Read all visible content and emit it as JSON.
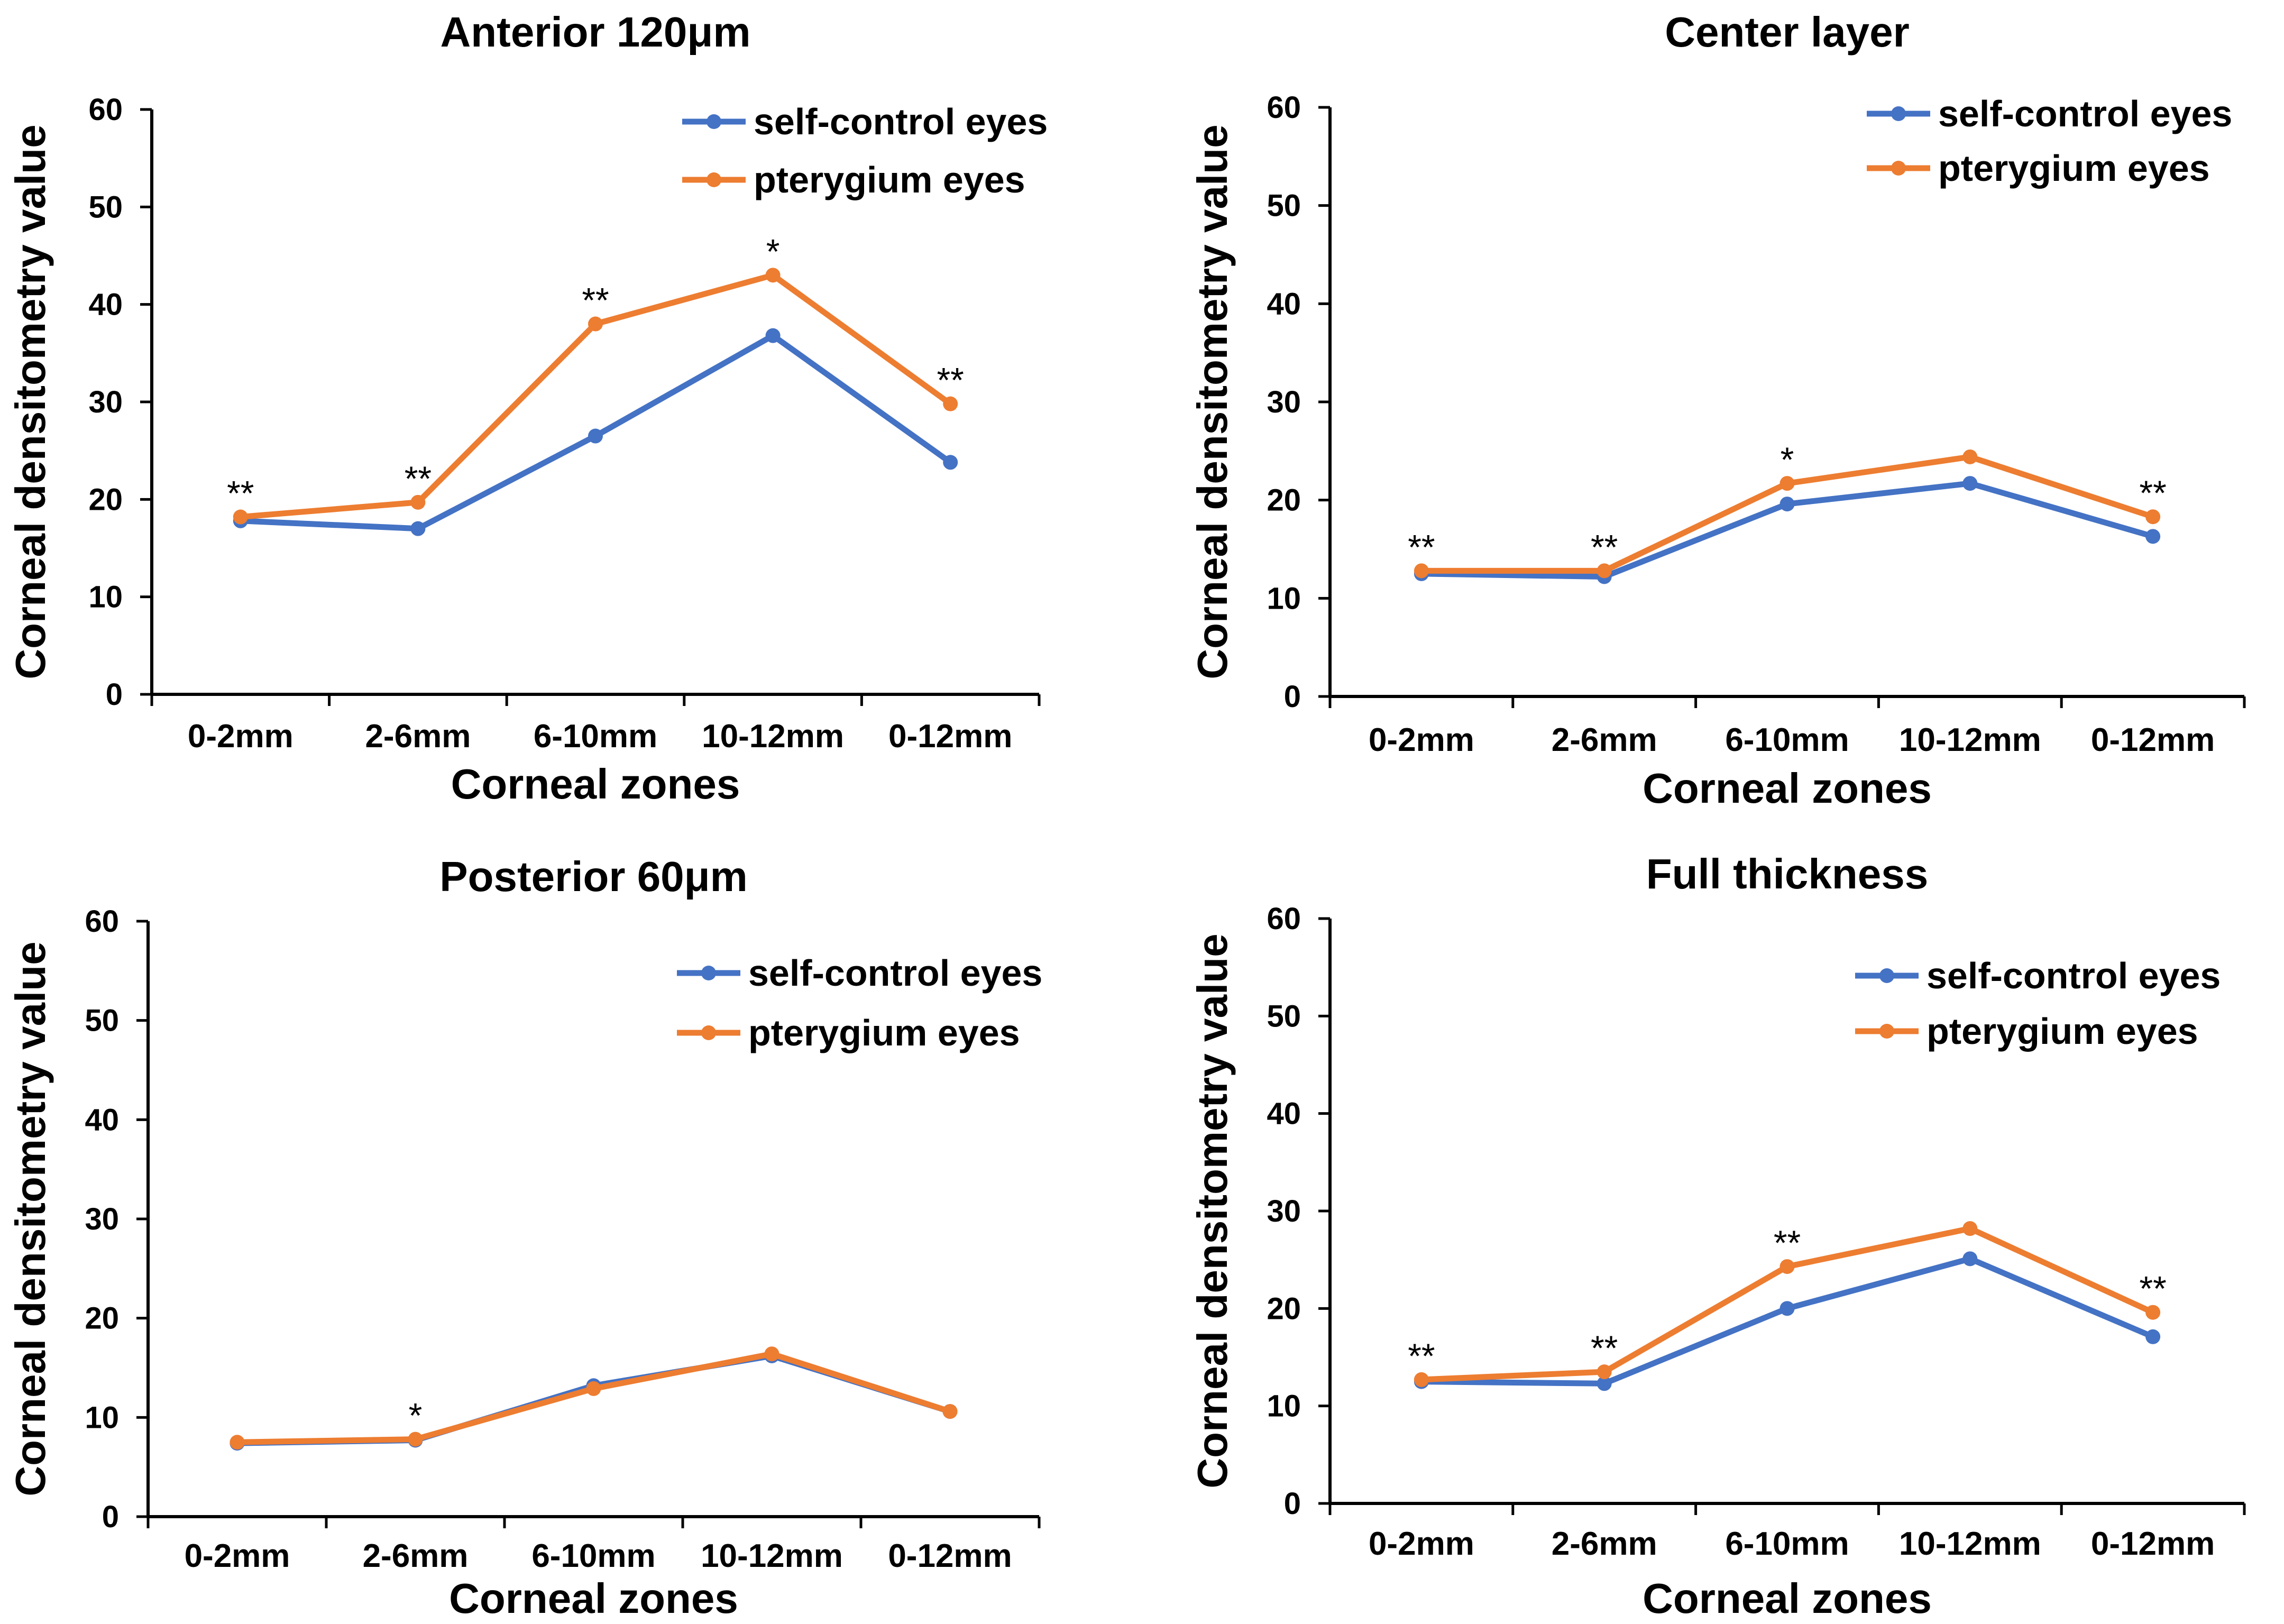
{
  "colors": {
    "self_control": "#4472C4",
    "pterygium": "#ED7D31",
    "axis": "#000000"
  },
  "chart_data": [
    {
      "type": "line",
      "title": "Anterior 120μm",
      "xlabel": "Corneal zones",
      "ylabel": "Corneal densitometry value",
      "categories": [
        "0-2mm",
        "2-6mm",
        "6-10mm",
        "10-12mm",
        "0-12mm"
      ],
      "ylim": [
        0,
        60
      ],
      "yticks": [
        "0",
        "10",
        "20",
        "30",
        "40",
        "50",
        "60"
      ],
      "grid": false,
      "legend": "top-right",
      "series": [
        {
          "name": "self-control eyes",
          "values": [
            17.8,
            17.0,
            26.5,
            36.8,
            23.8
          ]
        },
        {
          "name": "pterygium eyes",
          "values": [
            18.2,
            19.7,
            38.0,
            43.0,
            29.8
          ]
        }
      ],
      "annotations": [
        "**",
        "**",
        "**",
        "*",
        "**"
      ]
    },
    {
      "type": "line",
      "title": "Center layer",
      "xlabel": "Corneal zones",
      "ylabel": "Corneal densitometry value",
      "categories": [
        "0-2mm",
        "2-6mm",
        "6-10mm",
        "10-12mm",
        "0-12mm"
      ],
      "ylim": [
        0,
        60
      ],
      "yticks": [
        "0",
        "10",
        "20",
        "30",
        "40",
        "50",
        "60"
      ],
      "grid": false,
      "legend": "top-right",
      "series": [
        {
          "name": "self-control eyes",
          "values": [
            12.5,
            12.2,
            19.6,
            21.7,
            16.3
          ]
        },
        {
          "name": "pterygium eyes",
          "values": [
            12.8,
            12.8,
            21.7,
            24.4,
            18.3
          ]
        }
      ],
      "annotations": [
        "**",
        "**",
        "*",
        "",
        "**"
      ]
    },
    {
      "type": "line",
      "title": "Posterior  60μm",
      "xlabel": "Corneal zones",
      "ylabel": "Corneal densitometry value",
      "categories": [
        "0-2mm",
        "2-6mm",
        "6-10mm",
        "10-12mm",
        "0-12mm"
      ],
      "ylim": [
        0,
        60
      ],
      "yticks": [
        "0",
        "10",
        "20",
        "30",
        "40",
        "50",
        "60"
      ],
      "grid": false,
      "legend": "top-right",
      "series": [
        {
          "name": "self-control eyes",
          "values": [
            7.4,
            7.7,
            13.2,
            16.2,
            10.6
          ]
        },
        {
          "name": "pterygium eyes",
          "values": [
            7.5,
            7.8,
            12.9,
            16.4,
            10.6
          ]
        }
      ],
      "annotations": [
        "",
        "*",
        "",
        "",
        ""
      ]
    },
    {
      "type": "line",
      "title": "Full thickness",
      "xlabel": "Corneal zones",
      "ylabel": "Corneal densitometry value",
      "categories": [
        "0-2mm",
        "2-6mm",
        "6-10mm",
        "10-12mm",
        "0-12mm"
      ],
      "ylim": [
        0,
        60
      ],
      "yticks": [
        "0",
        "10",
        "20",
        "30",
        "40",
        "50",
        "60"
      ],
      "grid": false,
      "legend": "top-right",
      "series": [
        {
          "name": "self-control eyes",
          "values": [
            12.5,
            12.3,
            20.0,
            25.1,
            17.1
          ]
        },
        {
          "name": "pterygium eyes",
          "values": [
            12.7,
            13.5,
            24.3,
            28.2,
            19.6
          ]
        }
      ],
      "annotations": [
        "**",
        "**",
        "**",
        "",
        "**"
      ]
    }
  ]
}
